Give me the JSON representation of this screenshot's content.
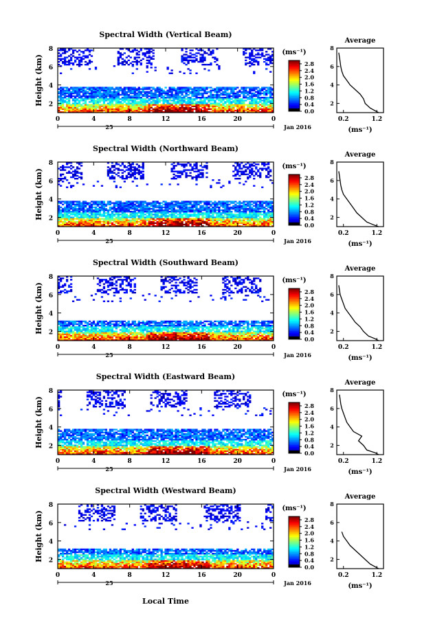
{
  "figure": {
    "xlabel": "Local Time",
    "date_label": "Jan 2016",
    "day_label": "25",
    "colorbar_unit": "(ms⁻¹)",
    "avg_title": "Average",
    "avg_unit": "(ms⁻¹)",
    "ylabel": "Height (km)"
  },
  "chart_data": [
    {
      "type": "heatmap",
      "title": "Spectral Width (Vertical Beam)",
      "xlabel": "",
      "ylabel": "Height (km)",
      "x_ticks": [
        "0",
        "4",
        "8",
        "12",
        "16",
        "20",
        "0"
      ],
      "y_ticks": [
        "2",
        "4",
        "6",
        "8"
      ],
      "xlim": [
        0,
        24
      ],
      "ylim": [
        1,
        8
      ],
      "colorbar": {
        "ticks": [
          "0.0",
          "0.4",
          "0.8",
          "1.2",
          "1.6",
          "2.0",
          "2.4",
          "2.8"
        ],
        "range": [
          0,
          3.0
        ]
      },
      "average": {
        "title": "Average",
        "x_ticks": [
          "0.2",
          "1.2"
        ],
        "y_ticks": [
          "2",
          "4",
          "6",
          "8"
        ],
        "height": [
          1.0,
          1.2,
          1.5,
          2.0,
          2.5,
          3.0,
          3.5,
          4.0,
          4.5,
          5.0,
          5.5,
          6.0,
          6.5,
          7.0,
          7.5
        ],
        "value": [
          1.25,
          1.15,
          1.0,
          0.85,
          0.8,
          0.7,
          0.55,
          0.4,
          0.3,
          0.2,
          0.15,
          0.12,
          0.1,
          0.08,
          0.06
        ]
      }
    },
    {
      "type": "heatmap",
      "title": "Spectral Width (Northward Beam)",
      "xlabel": "",
      "ylabel": "Height (km)",
      "x_ticks": [
        "0",
        "4",
        "8",
        "12",
        "16",
        "20",
        "0"
      ],
      "y_ticks": [
        "2",
        "4",
        "6",
        "8"
      ],
      "xlim": [
        0,
        24
      ],
      "ylim": [
        1,
        8
      ],
      "colorbar": {
        "ticks": [
          "0.0",
          "0.4",
          "0.8",
          "1.2",
          "1.6",
          "2.0",
          "2.4",
          "2.8"
        ],
        "range": [
          0,
          3.0
        ]
      },
      "average": {
        "title": "Average",
        "x_ticks": [
          "0.2",
          "1.2"
        ],
        "y_ticks": [
          "2",
          "4",
          "6",
          "8"
        ],
        "height": [
          1.0,
          1.2,
          1.5,
          2.0,
          2.5,
          3.0,
          3.5,
          4.0,
          4.5,
          5.0,
          5.5,
          6.0,
          6.5,
          7.0
        ],
        "value": [
          1.25,
          1.1,
          0.9,
          0.75,
          0.6,
          0.5,
          0.4,
          0.3,
          0.2,
          0.15,
          0.12,
          0.1,
          0.08,
          0.06
        ]
      }
    },
    {
      "type": "heatmap",
      "title": "Spectral Width (Southward Beam)",
      "xlabel": "",
      "ylabel": "Height (km)",
      "x_ticks": [
        "0",
        "4",
        "8",
        "12",
        "16",
        "20",
        "0"
      ],
      "y_ticks": [
        "2",
        "4",
        "6",
        "8"
      ],
      "xlim": [
        0,
        24
      ],
      "ylim": [
        1,
        8
      ],
      "colorbar": {
        "ticks": [
          "0.0",
          "0.4",
          "0.8",
          "1.2",
          "1.6",
          "2.0",
          "2.4",
          "2.8"
        ],
        "range": [
          0,
          3.0
        ]
      },
      "average": {
        "title": "Average",
        "x_ticks": [
          "0.2",
          "1.2"
        ],
        "y_ticks": [
          "2",
          "4",
          "6",
          "8"
        ],
        "height": [
          1.0,
          1.2,
          1.5,
          2.0,
          2.5,
          3.0,
          3.5,
          4.0,
          4.5,
          5.0,
          5.5,
          6.0,
          6.5,
          7.0
        ],
        "value": [
          1.25,
          1.15,
          0.95,
          0.8,
          0.7,
          0.55,
          0.45,
          0.35,
          0.25,
          0.2,
          0.15,
          0.1,
          0.08,
          0.06
        ]
      }
    },
    {
      "type": "heatmap",
      "title": "Spectral Width (Eastward Beam)",
      "xlabel": "",
      "ylabel": "Height (km)",
      "x_ticks": [
        "0",
        "4",
        "8",
        "12",
        "16",
        "20",
        "0"
      ],
      "y_ticks": [
        "2",
        "4",
        "6",
        "8"
      ],
      "xlim": [
        0,
        24
      ],
      "ylim": [
        1,
        8
      ],
      "colorbar": {
        "ticks": [
          "0.0",
          "0.4",
          "0.8",
          "1.2",
          "1.6",
          "2.0",
          "2.4",
          "2.8"
        ],
        "range": [
          0,
          3.0
        ]
      },
      "average": {
        "title": "Average",
        "x_ticks": [
          "0.2",
          "1.2"
        ],
        "y_ticks": [
          "2",
          "4",
          "6",
          "8"
        ],
        "height": [
          1.0,
          1.2,
          1.5,
          2.0,
          2.5,
          3.0,
          3.5,
          4.0,
          4.5,
          5.0,
          5.5,
          6.0,
          6.5,
          7.0,
          7.5
        ],
        "value": [
          1.25,
          1.15,
          0.9,
          0.8,
          0.65,
          0.75,
          0.5,
          0.4,
          0.3,
          0.25,
          0.2,
          0.15,
          0.12,
          0.1,
          0.08
        ]
      }
    },
    {
      "type": "heatmap",
      "title": "Spectral Width (Westward Beam)",
      "xlabel": "Local Time",
      "ylabel": "Height (km)",
      "x_ticks": [
        "0",
        "4",
        "8",
        "12",
        "16",
        "20",
        "0"
      ],
      "y_ticks": [
        "2",
        "4",
        "6",
        "8"
      ],
      "xlim": [
        0,
        24
      ],
      "ylim": [
        1,
        8
      ],
      "colorbar": {
        "ticks": [
          "0.0",
          "0.4",
          "0.8",
          "1.2",
          "1.6",
          "2.0",
          "2.4",
          "2.8"
        ],
        "range": [
          0,
          3.0
        ]
      },
      "average": {
        "title": "Average",
        "x_ticks": [
          "0.2",
          "1.2"
        ],
        "y_ticks": [
          "2",
          "4",
          "6",
          "8"
        ],
        "height": [
          1.0,
          1.2,
          1.5,
          2.0,
          2.5,
          3.0,
          3.5,
          4.0,
          4.5,
          5.0
        ],
        "value": [
          1.25,
          1.15,
          1.0,
          0.85,
          0.7,
          0.55,
          0.4,
          0.3,
          0.2,
          0.15
        ]
      }
    }
  ]
}
